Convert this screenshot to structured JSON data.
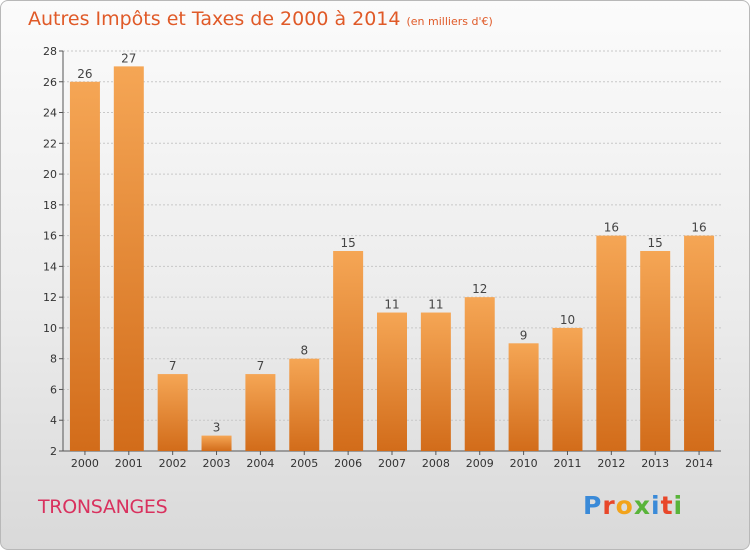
{
  "title": "Autres Impôts et Taxes de 2000 à 2014",
  "unit_note": "(en milliers d'€)",
  "commune": "TRONSANGES",
  "logo": {
    "text": "Proxiti",
    "colors": [
      "#3a8ad8",
      "#e8472a",
      "#f2a31b",
      "#59b43a",
      "#3a8ad8",
      "#e8472a",
      "#59b43a"
    ]
  },
  "colors": {
    "bar_top": "#f5a655",
    "bar_bottom": "#d26c1a",
    "title": "#e05a28",
    "commune": "#d9315e"
  },
  "chart_data": {
    "type": "bar",
    "title": "Autres Impôts et Taxes de 2000 à 2014",
    "categories": [
      "2000",
      "2001",
      "2002",
      "2003",
      "2004",
      "2005",
      "2006",
      "2007",
      "2008",
      "2009",
      "2010",
      "2011",
      "2012",
      "2013",
      "2014"
    ],
    "values": [
      26,
      27,
      7,
      3,
      7,
      8,
      15,
      11,
      11,
      12,
      9,
      10,
      16,
      15,
      16
    ],
    "ylim": [
      2,
      28
    ],
    "yticks": [
      2,
      4,
      6,
      8,
      10,
      12,
      14,
      16,
      18,
      20,
      22,
      24,
      26,
      28
    ],
    "grid": true,
    "legend": "none"
  }
}
